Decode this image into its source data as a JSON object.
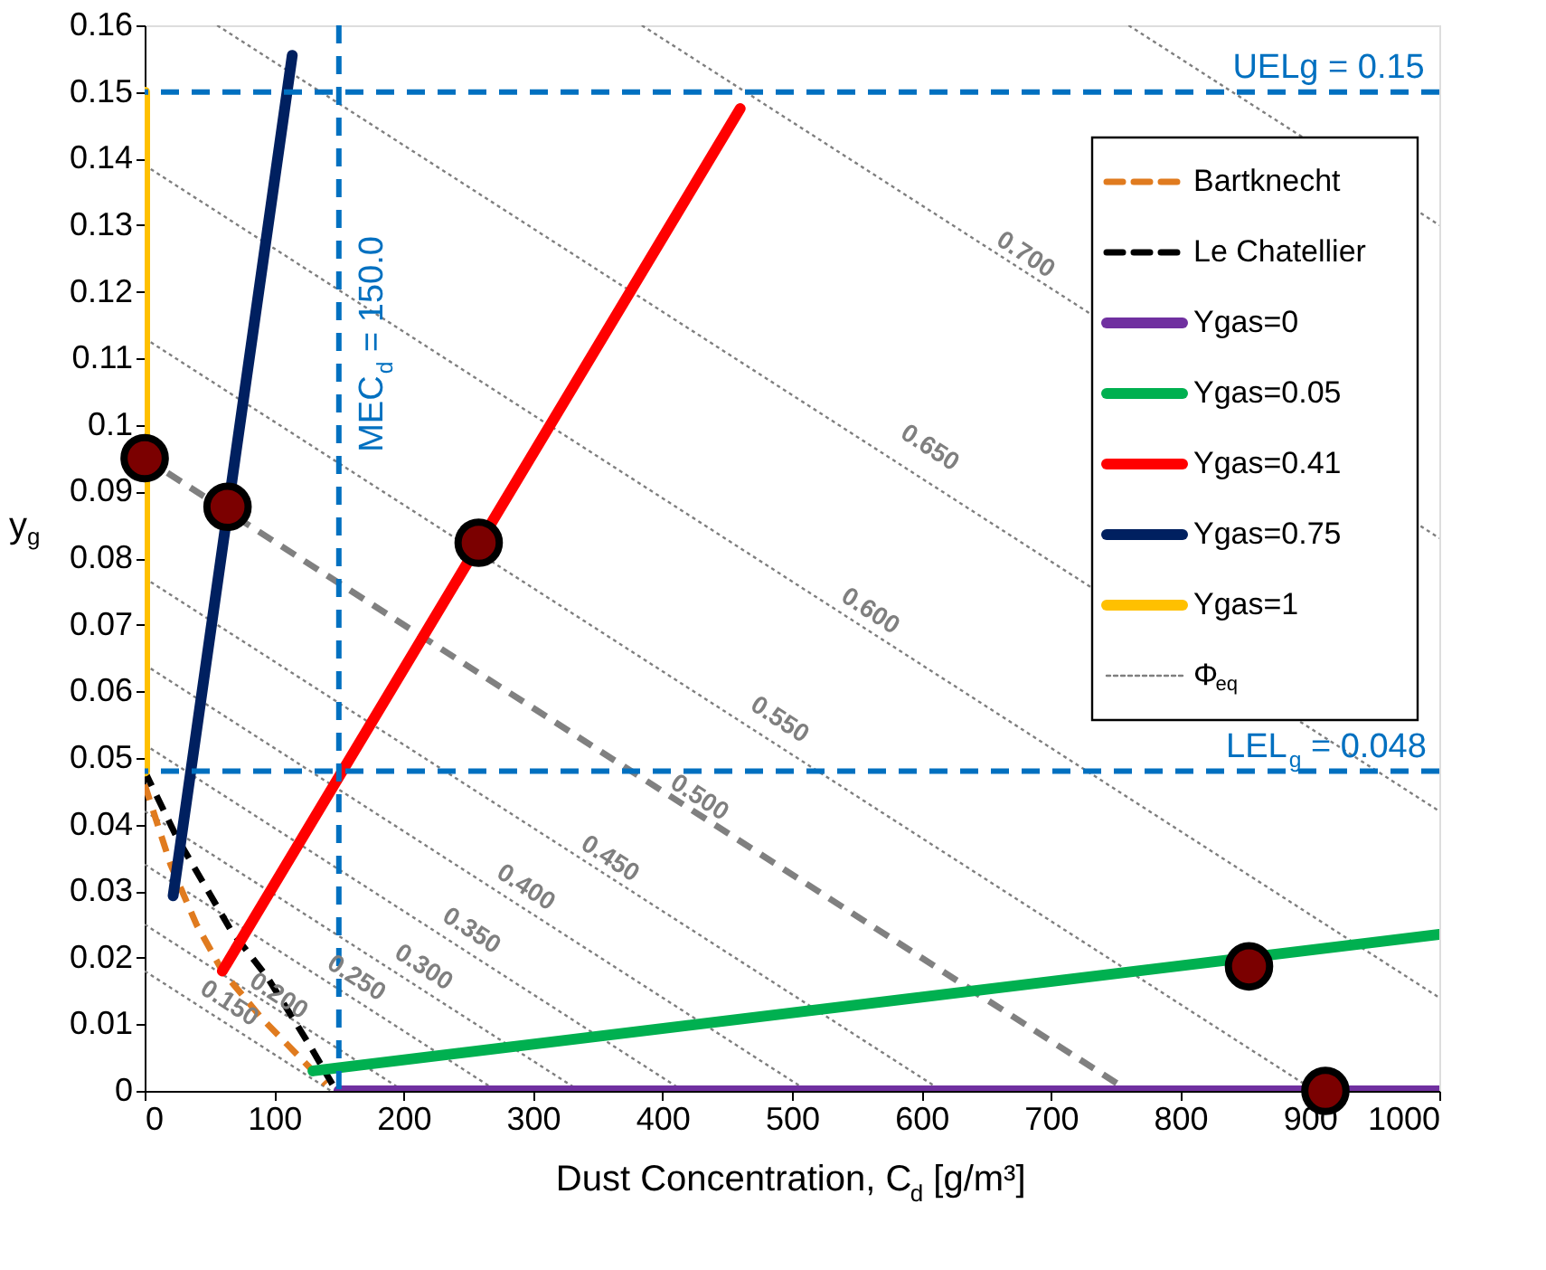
{
  "chart_data": {
    "type": "line",
    "xlabel": "Dust Concentration, C$_{d}$ [g/m³]",
    "ylabel": "y$_{g}$",
    "xlim": [
      0,
      1000
    ],
    "xticks": [
      0,
      100,
      200,
      300,
      400,
      500,
      600,
      700,
      800,
      900,
      {
        "value": 1000,
        "label": "1000"
      }
    ],
    "ylim": [
      0,
      0.16
    ],
    "yticks": [
      0,
      0.01,
      0.02,
      0.03,
      0.04,
      0.05,
      0.06,
      0.07,
      0.08,
      0.09,
      0.1,
      0.11,
      0.12,
      0.13,
      0.14,
      0.15,
      0.16
    ],
    "grid": false,
    "legend": "top right",
    "series": [
      {
        "color": "#7f7f7f",
        "line_style": "dotted",
        "x": [
          0,
          144
        ],
        "values": [
          0.018,
          0
        ]
      },
      {
        "color": "#7f7f7f",
        "line_style": "dotted",
        "x": [
          0,
          200
        ],
        "values": [
          0.025,
          0
        ]
      },
      {
        "color": "#7f7f7f",
        "line_style": "dotted",
        "x": [
          0,
          272
        ],
        "values": [
          0.034,
          0
        ]
      },
      {
        "color": "#7f7f7f",
        "line_style": "dotted",
        "x": [
          0,
          336
        ],
        "values": [
          0.042,
          0
        ]
      },
      {
        "color": "#7f7f7f",
        "line_style": "dotted",
        "x": [
          0,
          416
        ],
        "values": [
          0.052,
          0
        ]
      },
      {
        "color": "#7f7f7f",
        "line_style": "dotted",
        "x": [
          0,
          512
        ],
        "values": [
          0.064,
          0
        ]
      },
      {
        "color": "#7f7f7f",
        "line_style": "dotted",
        "x": [
          0,
          616
        ],
        "values": [
          0.077,
          0
        ]
      },
      {
        "color": "#808080",
        "line_style": "dashed",
        "x": [
          0,
          760
        ],
        "values": [
          0.095,
          0
        ]
      },
      {
        "color": "#7f7f7f",
        "line_style": "dotted",
        "x": [
          0,
          904
        ],
        "values": [
          0.113,
          0
        ]
      },
      {
        "color": "#7f7f7f",
        "line_style": "dotted",
        "x": [
          0,
          1000
        ],
        "values": [
          0.139,
          0.014
        ]
      },
      {
        "color": "#7f7f7f",
        "line_style": "dotted",
        "x": [
          56,
          1000
        ],
        "values": [
          0.16,
          0.042
        ]
      },
      {
        "color": "#7f7f7f",
        "line_style": "dotted",
        "x": [
          384,
          1000
        ],
        "values": [
          0.16,
          0.083
        ]
      },
      {
        "name": "Bartknecht",
        "color": "#e07b1f",
        "line_style": "dashed",
        "x": [
          0,
          20,
          40,
          60,
          90,
          120,
          140
        ],
        "values": [
          0.046,
          0.034,
          0.025,
          0.018,
          0.011,
          0.005,
          0.001
        ]
      },
      {
        "name": "Le Chatellier",
        "color": "#000000",
        "line_style": "dashed",
        "x": [
          0,
          25,
          67,
          95,
          127,
          145
        ],
        "values": [
          0.048,
          0.038,
          0.024,
          0.017,
          0.007,
          0.001
        ]
      },
      {
        "name": "Υgas=0",
        "color": "#7030a0",
        "line_style": "solid",
        "x": [
          150,
          1000
        ],
        "values": [
          0,
          0
        ]
      },
      {
        "name": "Υgas=0.05",
        "color": "#00b050",
        "line_style": "solid",
        "x": [
          130,
          1000
        ],
        "values": [
          0.003,
          0.0235
        ]
      },
      {
        "name": "Υgas=0.41",
        "color": "#ff0000",
        "line_style": "solid",
        "x": [
          60,
          460
        ],
        "values": [
          0.018,
          0.1475
        ]
      },
      {
        "name": "Υgas=0.75",
        "color": "#002060",
        "line_style": "solid",
        "x": [
          22,
          114
        ],
        "values": [
          0.0293,
          0.1555
        ]
      },
      {
        "name": "Υgas=1",
        "color": "#ffc000",
        "line_style": "solid",
        "x": [
          0,
          0
        ],
        "values": [
          0.048,
          0.15
        ]
      },
      {
        "name": "Φ$_{eq}$",
        "color": "#7f7f7f",
        "line_style": "dotted",
        "x": [
          760,
          1000
        ],
        "values": [
          0.16,
          0.13
        ]
      },
      {
        "type": "scatter",
        "marker": "circle",
        "color": "#7b0000",
        "x": [
          0,
          64,
          258,
          853,
          912
        ],
        "values": [
          0.095,
          0.0877,
          0.0823,
          0.0187,
          0
        ]
      }
    ],
    "ref_lines": [
      {
        "axis": "y",
        "value": 0.15,
        "label": "UELg = 0.15",
        "color": "#0070c0",
        "line_style": "dashed"
      },
      {
        "axis": "y",
        "value": 0.048,
        "label": "LEL$_{g}$ = 0.048",
        "color": "#0070c0",
        "line_style": "dashed"
      },
      {
        "axis": "x",
        "value": 150,
        "label": "MEC$_{d}$ = 150.0",
        "color": "#0070c0",
        "line_style": "dashed"
      }
    ],
    "annotations": [
      {
        "text": "0.150",
        "x": 57,
        "y": 0.0106
      },
      {
        "text": "0.200",
        "x": 95,
        "y": 0.0117
      },
      {
        "text": "0.250",
        "x": 155,
        "y": 0.0144
      },
      {
        "text": "0.300",
        "x": 207,
        "y": 0.016
      },
      {
        "text": "0.350",
        "x": 244,
        "y": 0.0215
      },
      {
        "text": "0.400",
        "x": 286,
        "y": 0.028
      },
      {
        "text": "0.450",
        "x": 351,
        "y": 0.0323
      },
      {
        "text": "0.500",
        "x": 420,
        "y": 0.0415
      },
      {
        "text": "0.550",
        "x": 482,
        "y": 0.0532
      },
      {
        "text": "0.600",
        "x": 552,
        "y": 0.0695
      },
      {
        "text": "0.650",
        "x": 598,
        "y": 0.094
      },
      {
        "text": "0.700",
        "x": 672,
        "y": 0.123
      }
    ]
  }
}
